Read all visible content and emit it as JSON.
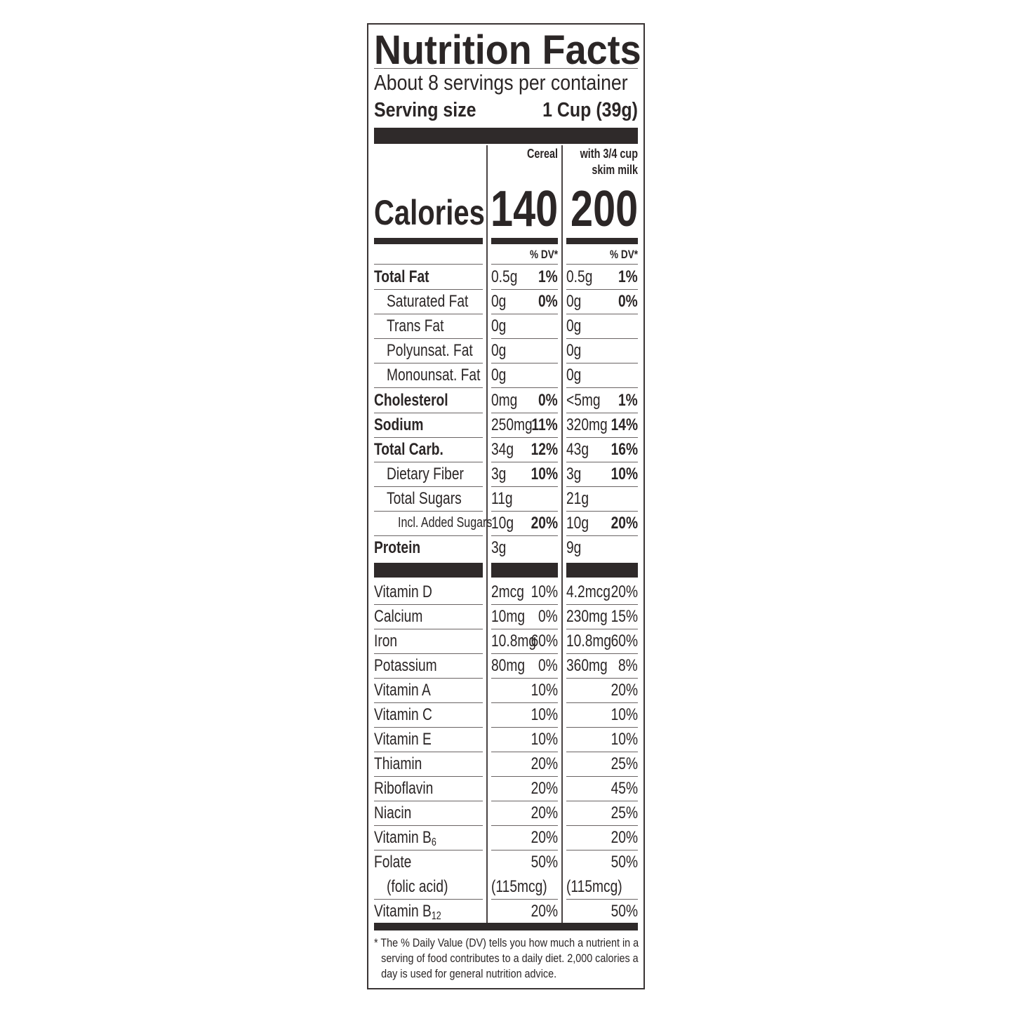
{
  "title": "Nutrition Facts",
  "servings_per_container": "About 8 servings per container",
  "serving_size_label": "Serving size",
  "serving_size_value": "1 Cup (39g)",
  "columns": {
    "cereal": "Cereal",
    "milk_line1": "with 3/4 cup",
    "milk_line2": "skim milk"
  },
  "calories": {
    "label": "Calories",
    "cereal": "140",
    "milk": "200"
  },
  "dv_header": "% DV*",
  "nutrients": [
    {
      "label": "Total Fat",
      "level": 0,
      "bold": true,
      "cereal_amount": "0.5g",
      "cereal_dv": "1%",
      "milk_amount": "0.5g",
      "milk_dv": "1%"
    },
    {
      "label": "Saturated Fat",
      "level": 1,
      "bold": false,
      "cereal_amount": "0g",
      "cereal_dv": "0%",
      "milk_amount": "0g",
      "milk_dv": "0%"
    },
    {
      "label": "Trans Fat",
      "level": 1,
      "bold": false,
      "cereal_amount": "0g",
      "cereal_dv": "",
      "milk_amount": "0g",
      "milk_dv": ""
    },
    {
      "label": "Polyunsat. Fat",
      "level": 1,
      "bold": false,
      "cereal_amount": "0g",
      "cereal_dv": "",
      "milk_amount": "0g",
      "milk_dv": ""
    },
    {
      "label": "Monounsat. Fat",
      "level": 1,
      "bold": false,
      "cereal_amount": "0g",
      "cereal_dv": "",
      "milk_amount": "0g",
      "milk_dv": ""
    },
    {
      "label": "Cholesterol",
      "level": 0,
      "bold": true,
      "cereal_amount": "0mg",
      "cereal_dv": "0%",
      "milk_amount": "<5mg",
      "milk_dv": "1%"
    },
    {
      "label": "Sodium",
      "level": 0,
      "bold": true,
      "cereal_amount": "250mg",
      "cereal_dv": "11%",
      "milk_amount": "320mg",
      "milk_dv": "14%"
    },
    {
      "label": "Total Carb.",
      "level": 0,
      "bold": true,
      "cereal_amount": "34g",
      "cereal_dv": "12%",
      "milk_amount": "43g",
      "milk_dv": "16%"
    },
    {
      "label": "Dietary Fiber",
      "level": 1,
      "bold": false,
      "cereal_amount": "3g",
      "cereal_dv": "10%",
      "milk_amount": "3g",
      "milk_dv": "10%"
    },
    {
      "label": "Total Sugars",
      "level": 1,
      "bold": false,
      "cereal_amount": "11g",
      "cereal_dv": "",
      "milk_amount": "21g",
      "milk_dv": ""
    },
    {
      "label": "Incl. Added Sugars",
      "level": 2,
      "bold": false,
      "cereal_amount": "10g",
      "cereal_dv": "20%",
      "milk_amount": "10g",
      "milk_dv": "20%"
    },
    {
      "label": "Protein",
      "level": 0,
      "bold": true,
      "cereal_amount": "3g",
      "cereal_dv": "",
      "milk_amount": "9g",
      "milk_dv": ""
    }
  ],
  "vitamins": [
    {
      "label": "Vitamin D",
      "sub": "",
      "cereal_amount": "2mcg",
      "cereal_dv": "10%",
      "milk_amount": "4.2mcg",
      "milk_dv": "20%"
    },
    {
      "label": "Calcium",
      "sub": "",
      "cereal_amount": "10mg",
      "cereal_dv": "0%",
      "milk_amount": "230mg",
      "milk_dv": "15%"
    },
    {
      "label": "Iron",
      "sub": "",
      "cereal_amount": "10.8mg",
      "cereal_dv": "60%",
      "milk_amount": "10.8mg",
      "milk_dv": "60%"
    },
    {
      "label": "Potassium",
      "sub": "",
      "cereal_amount": "80mg",
      "cereal_dv": "0%",
      "milk_amount": "360mg",
      "milk_dv": "8%"
    },
    {
      "label": "Vitamin A",
      "sub": "",
      "cereal_amount": "",
      "cereal_dv": "10%",
      "milk_amount": "",
      "milk_dv": "20%"
    },
    {
      "label": "Vitamin C",
      "sub": "",
      "cereal_amount": "",
      "cereal_dv": "10%",
      "milk_amount": "",
      "milk_dv": "10%"
    },
    {
      "label": "Vitamin E",
      "sub": "",
      "cereal_amount": "",
      "cereal_dv": "10%",
      "milk_amount": "",
      "milk_dv": "10%"
    },
    {
      "label": "Thiamin",
      "sub": "",
      "cereal_amount": "",
      "cereal_dv": "20%",
      "milk_amount": "",
      "milk_dv": "25%"
    },
    {
      "label": "Riboflavin",
      "sub": "",
      "cereal_amount": "",
      "cereal_dv": "20%",
      "milk_amount": "",
      "milk_dv": "45%"
    },
    {
      "label": "Niacin",
      "sub": "",
      "cereal_amount": "",
      "cereal_dv": "20%",
      "milk_amount": "",
      "milk_dv": "25%"
    },
    {
      "label": "Vitamin B",
      "sub": "6",
      "cereal_amount": "",
      "cereal_dv": "20%",
      "milk_amount": "",
      "milk_dv": "20%"
    },
    {
      "label": "Folate",
      "sub": "",
      "label2": "(folic acid)",
      "cereal_amount": "(115mcg)",
      "cereal_dv": "50%",
      "milk_amount": "(115mcg)",
      "milk_dv": "50%"
    },
    {
      "label": "Vitamin B",
      "sub": "12",
      "cereal_amount": "",
      "cereal_dv": "20%",
      "milk_amount": "",
      "milk_dv": "50%"
    }
  ],
  "footnote": "* The % Daily Value (DV) tells you how much a nutrient in a serving of food contributes to a daily diet. 2,000 calories a day is used for general nutrition advice."
}
